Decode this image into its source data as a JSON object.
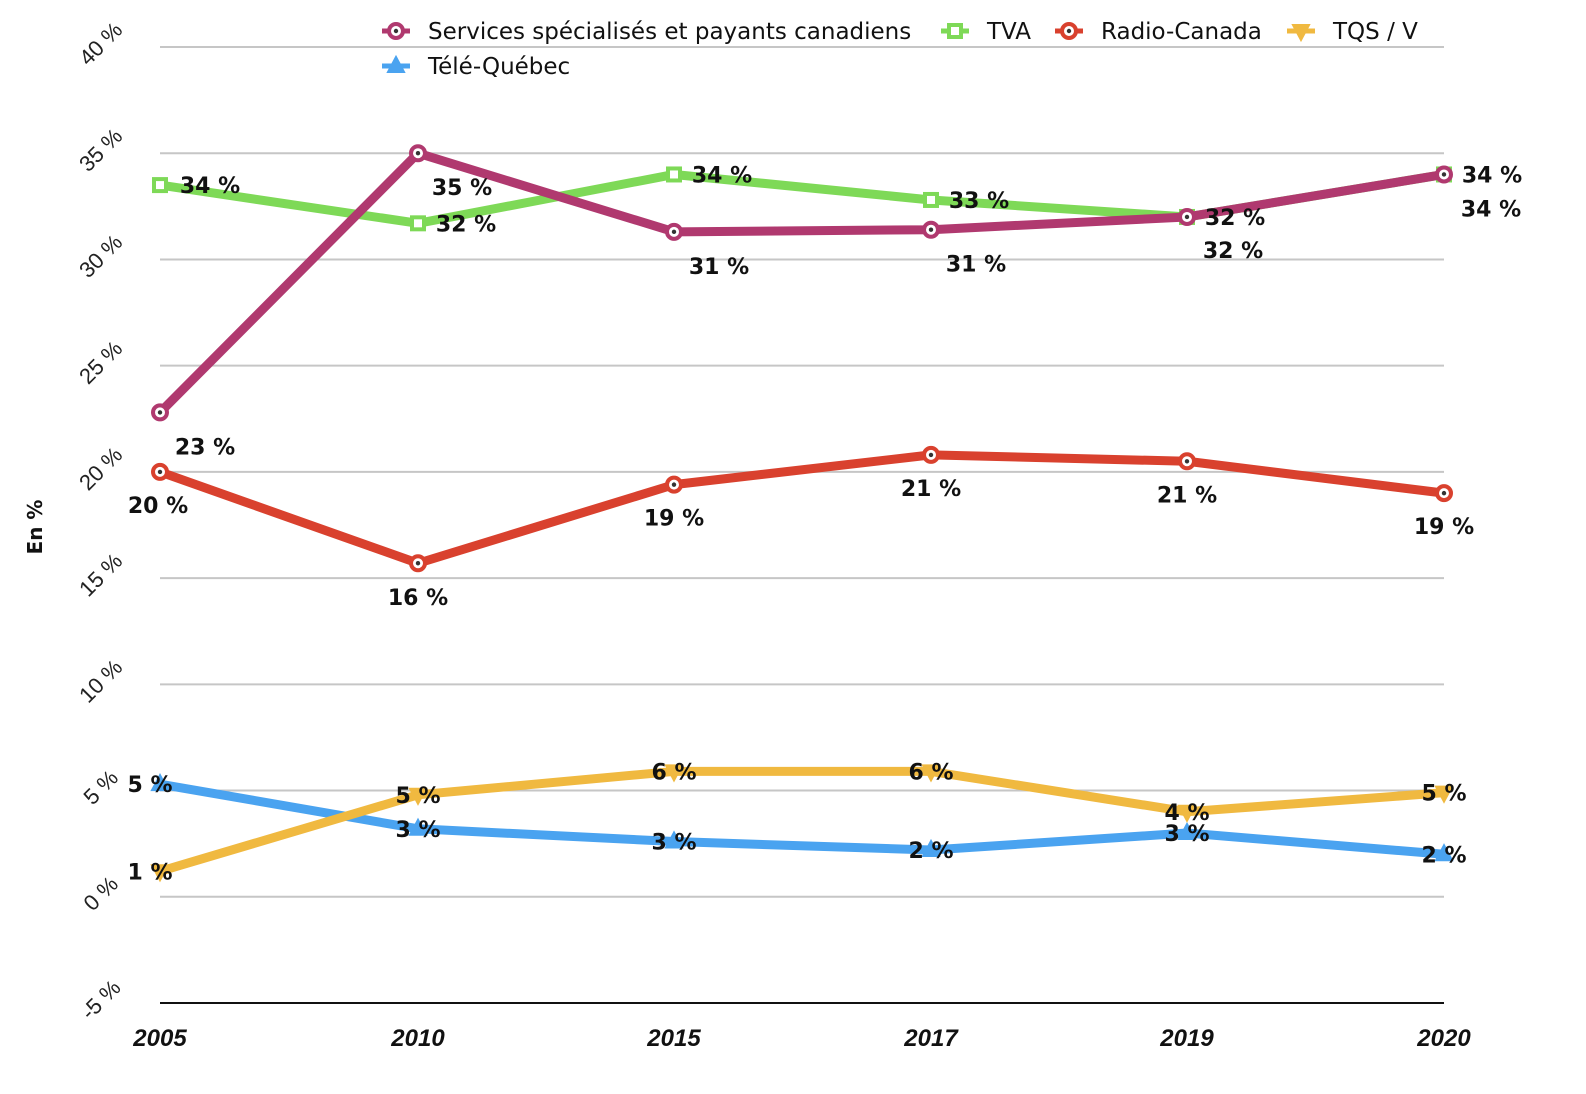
{
  "chart_data": {
    "type": "line",
    "xlabel": "",
    "ylabel": "En %",
    "ylim": [
      -5,
      40
    ],
    "y_ticks": [
      "-5 %",
      "0 %",
      "5 %",
      "10 %",
      "15 %",
      "20 %",
      "25 %",
      "30 %",
      "35 %",
      "40 %"
    ],
    "y_tick_values": [
      -5,
      0,
      5,
      10,
      15,
      20,
      25,
      30,
      35,
      40
    ],
    "categories": [
      "2005",
      "2010",
      "2015",
      "2017",
      "2019",
      "2020"
    ],
    "grid": true,
    "legend_position": "top",
    "series": [
      {
        "name": "Services spécialisés et payants canadiens",
        "color": "#b0396f",
        "marker": "circle",
        "values": [
          22.8,
          35,
          31.3,
          31.4,
          32,
          34
        ],
        "labels": [
          "23 %",
          "35 %",
          "31 %",
          "31 %",
          "32 %",
          "34 %"
        ]
      },
      {
        "name": "TVA",
        "color": "#7ed957",
        "marker": "square",
        "values": [
          33.5,
          31.7,
          34,
          32.8,
          32,
          34
        ],
        "labels": [
          "34 %",
          "32 %",
          "34 %",
          "33 %",
          "32 %",
          "34 %"
        ]
      },
      {
        "name": "Radio-Canada",
        "color": "#d9412e",
        "marker": "circle",
        "values": [
          20,
          15.7,
          19.4,
          20.8,
          20.5,
          19
        ],
        "labels": [
          "20 %",
          "16 %",
          "19 %",
          "21 %",
          "21 %",
          "19 %"
        ]
      },
      {
        "name": "TQS / V",
        "color": "#f0b940",
        "marker": "triangle-down",
        "values": [
          1.2,
          4.8,
          5.9,
          5.9,
          4,
          4.9
        ],
        "labels": [
          "1 %",
          "5 %",
          "6 %",
          "6 %",
          "4 %",
          "5 %"
        ]
      },
      {
        "name": "Télé-Québec",
        "color": "#4aa3f0",
        "marker": "triangle-up",
        "values": [
          5.3,
          3.2,
          2.6,
          2.2,
          3,
          2
        ],
        "labels": [
          "5 %",
          "3 %",
          "3 %",
          "2 %",
          "3 %",
          "2 %"
        ]
      }
    ]
  }
}
